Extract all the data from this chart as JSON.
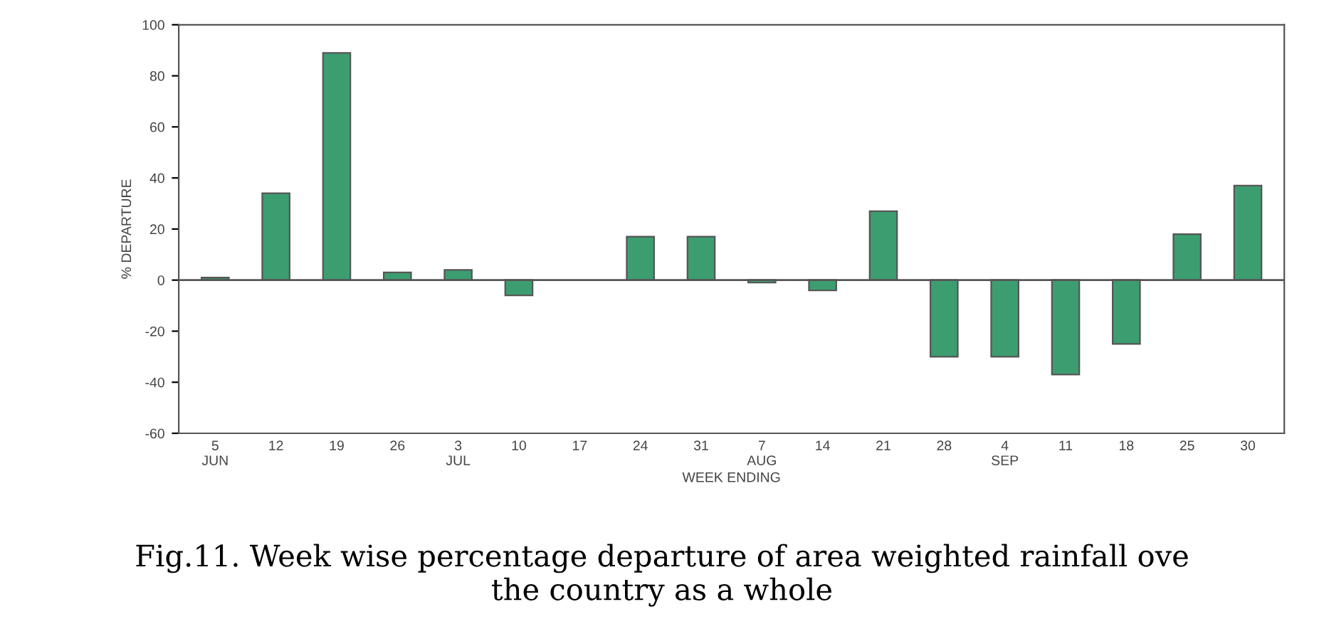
{
  "chart_data": {
    "type": "bar",
    "title": "Fig.11. Week wise percentage departure of area weighted rainfall ove\nthe country as a whole",
    "xlabel": "WEEK ENDING",
    "ylabel": "% DEPARTURE",
    "categories": [
      "5\nJUN",
      "12",
      "19",
      "26",
      "3\nJUL",
      "10",
      "17",
      "24",
      "31",
      "7\nAUG",
      "14",
      "21",
      "28",
      "4\nSEP",
      "11",
      "18",
      "25",
      "30"
    ],
    "values": [
      1,
      34,
      89,
      3,
      4,
      -6,
      null,
      17,
      17,
      -1,
      -4,
      27,
      -30,
      -30,
      -37,
      -25,
      18,
      37
    ],
    "color": "#3c9e70",
    "ylim": [
      -60,
      100
    ],
    "yticks": [
      -60,
      -40,
      -20,
      0,
      20,
      40,
      60,
      80,
      100
    ],
    "ref_lines": [
      {
        "axis": "y",
        "value": 0,
        "color": "#555555"
      }
    ],
    "grid": false
  }
}
